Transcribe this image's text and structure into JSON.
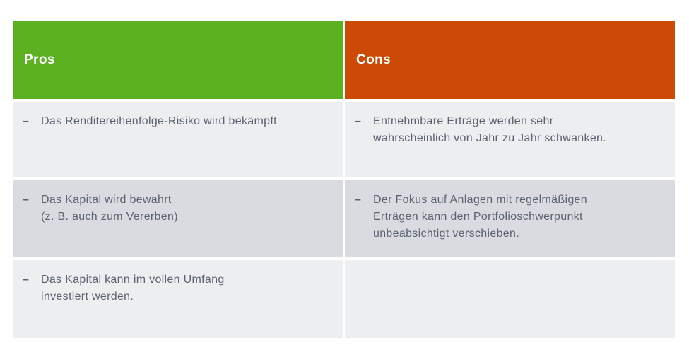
{
  "bullet": "–",
  "colors": {
    "pros_header_bg": "#5CB121",
    "cons_header_bg": "#CC4A06",
    "header_text": "#FFFFFF",
    "row_light_bg": "#EDEEF0",
    "row_dark_bg": "#D9DBE0",
    "body_text": "#5B6372",
    "page_bg": "#FFFFFF"
  },
  "table": {
    "pros": {
      "header": "Pros",
      "rows": [
        {
          "text": "Das Renditereihenfolge-Risiko wird bekämpft"
        },
        {
          "text": "Das Kapital wird bewahrt\n(z. B. auch zum Vererben)"
        },
        {
          "text": "Das Kapital kann im vollen Umfang\ninvestiert werden."
        }
      ]
    },
    "cons": {
      "header": "Cons",
      "rows": [
        {
          "text": "Entnehmbare Erträge werden sehr\nwahrscheinlich von Jahr zu Jahr schwanken."
        },
        {
          "text": "Der Fokus auf Anlagen mit regelmäßigen\nErträgen kann den Portfolioschwerpunkt\nunbeabsichtigt verschieben."
        },
        {
          "text": ""
        }
      ]
    }
  }
}
